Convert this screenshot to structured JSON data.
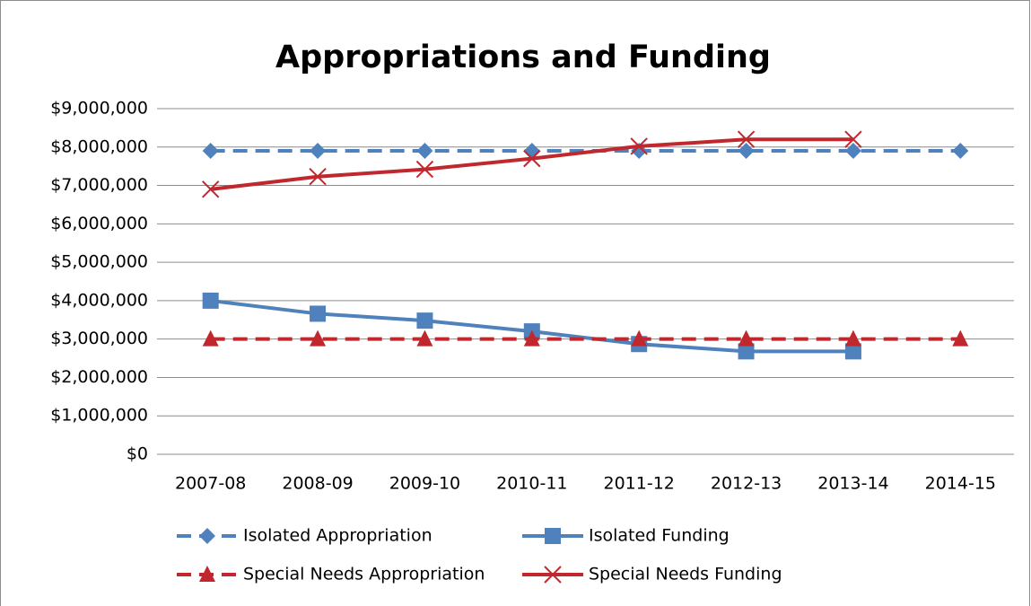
{
  "chart_data": {
    "type": "line",
    "title": "Appropriations and Funding",
    "categories": [
      "2007-08",
      "2008-09",
      "2009-10",
      "2010-11",
      "2011-12",
      "2012-13",
      "2013-14",
      "2014-15"
    ],
    "series": [
      {
        "name": "Isolated Appropriation",
        "color": "#4f81bd",
        "dash": true,
        "marker": "diamond",
        "values": [
          7900000,
          7900000,
          7900000,
          7900000,
          7900000,
          7900000,
          7900000,
          7900000
        ]
      },
      {
        "name": "Isolated Funding",
        "color": "#4f81bd",
        "dash": false,
        "marker": "square",
        "values": [
          4000000,
          3660000,
          3480000,
          3200000,
          2870000,
          2680000,
          2680000,
          null
        ]
      },
      {
        "name": "Special Needs Appropriation",
        "color": "#c0282d",
        "dash": true,
        "marker": "triangle",
        "values": [
          3000000,
          3000000,
          3000000,
          3000000,
          3000000,
          3000000,
          3000000,
          3000000
        ]
      },
      {
        "name": "Special Needs Funding",
        "color": "#c0282d",
        "dash": false,
        "marker": "x",
        "values": [
          6900000,
          7230000,
          7420000,
          7700000,
          8020000,
          8200000,
          8200000,
          null
        ]
      }
    ],
    "ylim": [
      0,
      9000000
    ],
    "yticks": [
      {
        "value": 0,
        "label": "$0"
      },
      {
        "value": 1000000,
        "label": "$1,000,000"
      },
      {
        "value": 2000000,
        "label": "$2,000,000"
      },
      {
        "value": 3000000,
        "label": "$3,000,000"
      },
      {
        "value": 4000000,
        "label": "$4,000,000"
      },
      {
        "value": 5000000,
        "label": "$5,000,000"
      },
      {
        "value": 6000000,
        "label": "$6,000,000"
      },
      {
        "value": 7000000,
        "label": "$7,000,000"
      },
      {
        "value": 8000000,
        "label": "$8,000,000"
      },
      {
        "value": 9000000,
        "label": "$9,000,000"
      }
    ],
    "grid": true,
    "legend": "bottom"
  }
}
